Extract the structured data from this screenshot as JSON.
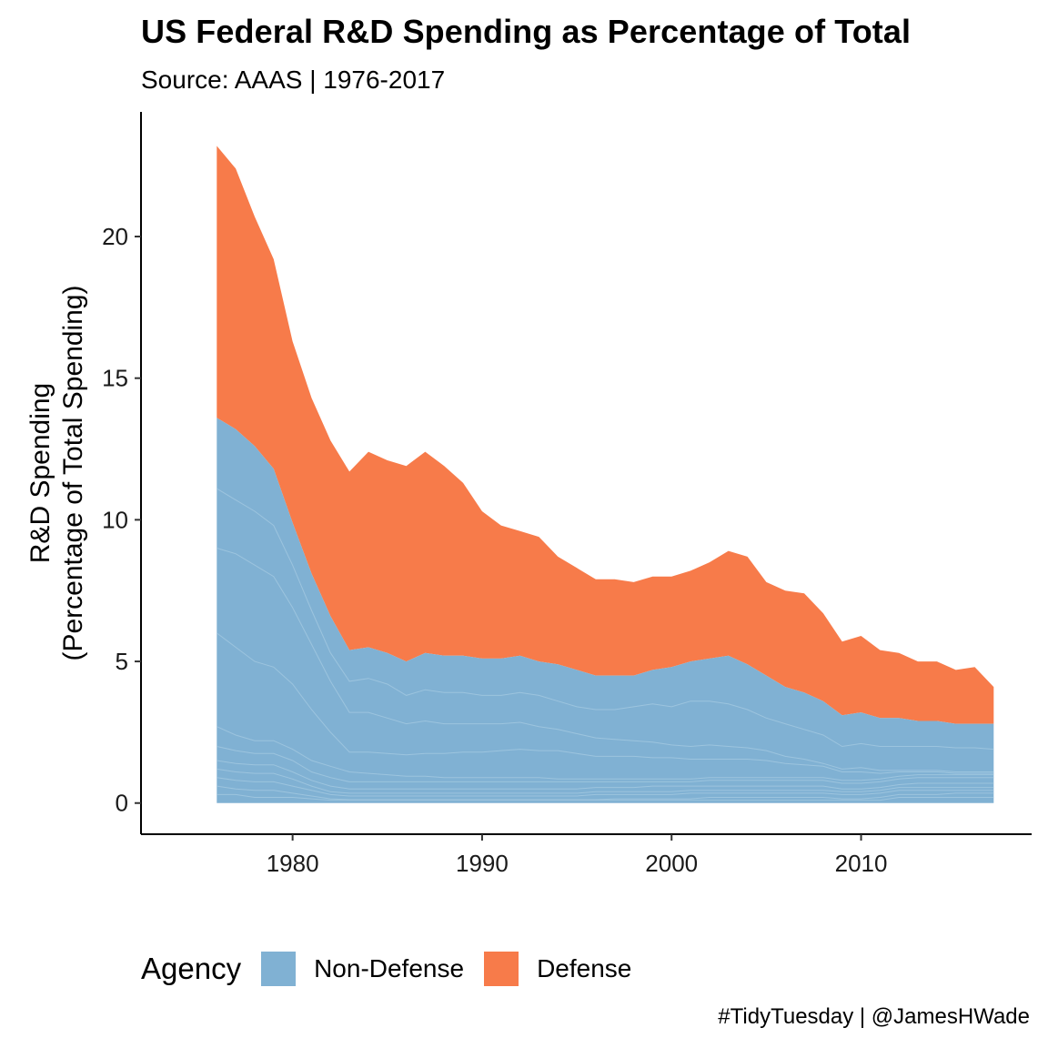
{
  "title": "US Federal R&D Spending as Percentage of Total",
  "subtitle": "Source: AAAS | 1976-2017",
  "caption": "#TidyTuesday | @JamesHWade",
  "legend": {
    "title": "Agency",
    "items": [
      {
        "label": "Non-Defense",
        "color": "#80B1D3"
      },
      {
        "label": "Defense",
        "color": "#F77B4A"
      }
    ]
  },
  "chart_data": {
    "type": "area",
    "stacked": true,
    "title": "US Federal R&D Spending as Percentage of Total",
    "subtitle": "Source: AAAS | 1976-2017",
    "xlabel": "",
    "ylabel_lines": [
      "R&D Spending",
      "(Percentage of Total Spending)"
    ],
    "xlim": [
      1972,
      2019
    ],
    "ylim": [
      -1.1,
      24.4
    ],
    "xticks": [
      1980,
      1990,
      2000,
      2010
    ],
    "yticks": [
      0,
      5,
      10,
      15,
      20
    ],
    "grid": false,
    "legend_position": "bottom-left",
    "x": [
      1976,
      1977,
      1978,
      1979,
      1980,
      1981,
      1982,
      1983,
      1984,
      1985,
      1986,
      1987,
      1988,
      1989,
      1990,
      1991,
      1992,
      1993,
      1994,
      1995,
      1996,
      1997,
      1998,
      1999,
      2000,
      2001,
      2002,
      2003,
      2004,
      2005,
      2006,
      2007,
      2008,
      2009,
      2010,
      2011,
      2012,
      2013,
      2014,
      2015,
      2016,
      2017
    ],
    "series": [
      {
        "name": "Non-Defense",
        "color": "#80B1D3",
        "values": [
          13.6,
          13.2,
          12.6,
          11.8,
          9.9,
          8.1,
          6.6,
          5.4,
          5.5,
          5.3,
          5.0,
          5.3,
          5.2,
          5.2,
          5.1,
          5.1,
          5.2,
          5.0,
          4.9,
          4.7,
          4.5,
          4.5,
          4.5,
          4.7,
          4.8,
          5.0,
          5.1,
          5.2,
          4.9,
          4.5,
          4.1,
          3.9,
          3.6,
          3.1,
          3.2,
          3.0,
          3.0,
          2.9,
          2.9,
          2.8,
          2.8,
          2.8
        ]
      },
      {
        "name": "Defense",
        "color": "#F77B4A",
        "values": [
          9.6,
          9.2,
          8.1,
          7.4,
          6.4,
          6.2,
          6.2,
          6.3,
          6.9,
          6.8,
          6.9,
          7.1,
          6.7,
          6.1,
          5.2,
          4.7,
          4.4,
          4.4,
          3.8,
          3.6,
          3.4,
          3.4,
          3.3,
          3.3,
          3.2,
          3.2,
          3.4,
          3.7,
          3.8,
          3.3,
          3.4,
          3.5,
          3.1,
          2.6,
          2.7,
          2.4,
          2.3,
          2.1,
          2.1,
          1.9,
          2.0,
          1.3
        ]
      }
    ],
    "nondefense_layer_cumulative": [
      [
        0.3,
        0.3,
        0.2,
        0.2,
        0.2,
        0.15,
        0.1,
        0.1,
        0.1,
        0.1,
        0.1,
        0.1,
        0.1,
        0.1,
        0.1,
        0.1,
        0.1,
        0.1,
        0.1,
        0.1,
        0.1,
        0.1,
        0.1,
        0.1,
        0.1,
        0.1,
        0.1,
        0.1,
        0.1,
        0.1,
        0.1,
        0.1,
        0.1,
        0.1,
        0.1,
        0.1,
        0.2,
        0.2,
        0.2,
        0.2,
        0.2,
        0.2
      ],
      [
        0.6,
        0.5,
        0.45,
        0.45,
        0.35,
        0.25,
        0.15,
        0.12,
        0.12,
        0.12,
        0.12,
        0.12,
        0.12,
        0.12,
        0.12,
        0.12,
        0.12,
        0.12,
        0.12,
        0.12,
        0.12,
        0.15,
        0.15,
        0.15,
        0.15,
        0.15,
        0.2,
        0.2,
        0.2,
        0.2,
        0.2,
        0.2,
        0.2,
        0.15,
        0.15,
        0.2,
        0.3,
        0.3,
        0.3,
        0.35,
        0.35,
        0.35
      ],
      [
        0.9,
        0.8,
        0.75,
        0.75,
        0.6,
        0.45,
        0.3,
        0.25,
        0.25,
        0.25,
        0.25,
        0.25,
        0.25,
        0.25,
        0.25,
        0.25,
        0.25,
        0.25,
        0.25,
        0.25,
        0.3,
        0.3,
        0.3,
        0.3,
        0.3,
        0.35,
        0.35,
        0.35,
        0.35,
        0.35,
        0.35,
        0.35,
        0.35,
        0.3,
        0.3,
        0.35,
        0.45,
        0.45,
        0.45,
        0.45,
        0.45,
        0.45
      ],
      [
        1.2,
        1.1,
        1.05,
        1.05,
        0.85,
        0.6,
        0.4,
        0.35,
        0.35,
        0.35,
        0.35,
        0.35,
        0.35,
        0.35,
        0.35,
        0.35,
        0.35,
        0.35,
        0.35,
        0.35,
        0.4,
        0.4,
        0.4,
        0.4,
        0.4,
        0.45,
        0.45,
        0.45,
        0.45,
        0.45,
        0.45,
        0.45,
        0.45,
        0.4,
        0.4,
        0.45,
        0.55,
        0.55,
        0.55,
        0.55,
        0.55,
        0.55
      ],
      [
        1.5,
        1.4,
        1.35,
        1.35,
        1.1,
        0.8,
        0.6,
        0.5,
        0.5,
        0.5,
        0.5,
        0.5,
        0.5,
        0.5,
        0.5,
        0.5,
        0.5,
        0.5,
        0.5,
        0.5,
        0.55,
        0.55,
        0.55,
        0.6,
        0.6,
        0.6,
        0.6,
        0.6,
        0.6,
        0.6,
        0.6,
        0.6,
        0.6,
        0.5,
        0.5,
        0.55,
        0.65,
        0.7,
        0.7,
        0.7,
        0.7,
        0.7
      ],
      [
        2.0,
        1.85,
        1.75,
        1.75,
        1.5,
        1.1,
        0.9,
        0.75,
        0.75,
        0.75,
        0.75,
        0.75,
        0.75,
        0.75,
        0.75,
        0.75,
        0.75,
        0.75,
        0.75,
        0.75,
        0.75,
        0.75,
        0.75,
        0.75,
        0.75,
        0.75,
        0.8,
        0.8,
        0.8,
        0.8,
        0.8,
        0.8,
        0.8,
        0.7,
        0.7,
        0.75,
        0.85,
        0.9,
        0.9,
        0.9,
        0.9,
        0.9
      ],
      [
        2.7,
        2.4,
        2.2,
        2.2,
        1.9,
        1.5,
        1.3,
        1.1,
        1.05,
        1.0,
        0.95,
        0.95,
        0.9,
        0.9,
        0.9,
        0.9,
        0.9,
        0.9,
        0.85,
        0.85,
        0.85,
        0.85,
        0.85,
        0.85,
        0.85,
        0.85,
        0.9,
        0.9,
        0.9,
        0.9,
        0.9,
        0.9,
        0.9,
        0.8,
        0.8,
        0.85,
        0.95,
        1.0,
        1.0,
        1.0,
        1.0,
        1.0
      ],
      [
        6.0,
        5.5,
        5.0,
        4.8,
        4.2,
        3.3,
        2.5,
        1.8,
        1.8,
        1.75,
        1.7,
        1.75,
        1.75,
        1.8,
        1.8,
        1.85,
        1.9,
        1.85,
        1.85,
        1.75,
        1.65,
        1.65,
        1.65,
        1.6,
        1.6,
        1.55,
        1.55,
        1.55,
        1.55,
        1.5,
        1.4,
        1.35,
        1.3,
        1.1,
        1.1,
        1.05,
        1.1,
        1.1,
        1.1,
        1.05,
        1.05,
        1.05
      ],
      [
        9.0,
        8.8,
        8.4,
        8.0,
        6.9,
        5.6,
        4.3,
        3.2,
        3.2,
        3.0,
        2.8,
        2.9,
        2.8,
        2.8,
        2.8,
        2.8,
        2.85,
        2.7,
        2.6,
        2.45,
        2.3,
        2.25,
        2.2,
        2.15,
        2.05,
        2.0,
        2.05,
        2.0,
        1.95,
        1.85,
        1.65,
        1.55,
        1.4,
        1.2,
        1.25,
        1.15,
        1.15,
        1.15,
        1.15,
        1.1,
        1.1,
        1.1
      ],
      [
        11.1,
        10.7,
        10.3,
        9.8,
        8.4,
        6.8,
        5.3,
        4.3,
        4.4,
        4.2,
        3.8,
        4.0,
        3.9,
        3.9,
        3.8,
        3.8,
        3.9,
        3.8,
        3.6,
        3.4,
        3.3,
        3.3,
        3.4,
        3.5,
        3.4,
        3.6,
        3.6,
        3.5,
        3.3,
        3.0,
        2.8,
        2.6,
        2.4,
        2.0,
        2.1,
        2.0,
        2.0,
        2.0,
        2.0,
        1.95,
        1.95,
        1.9
      ]
    ]
  }
}
